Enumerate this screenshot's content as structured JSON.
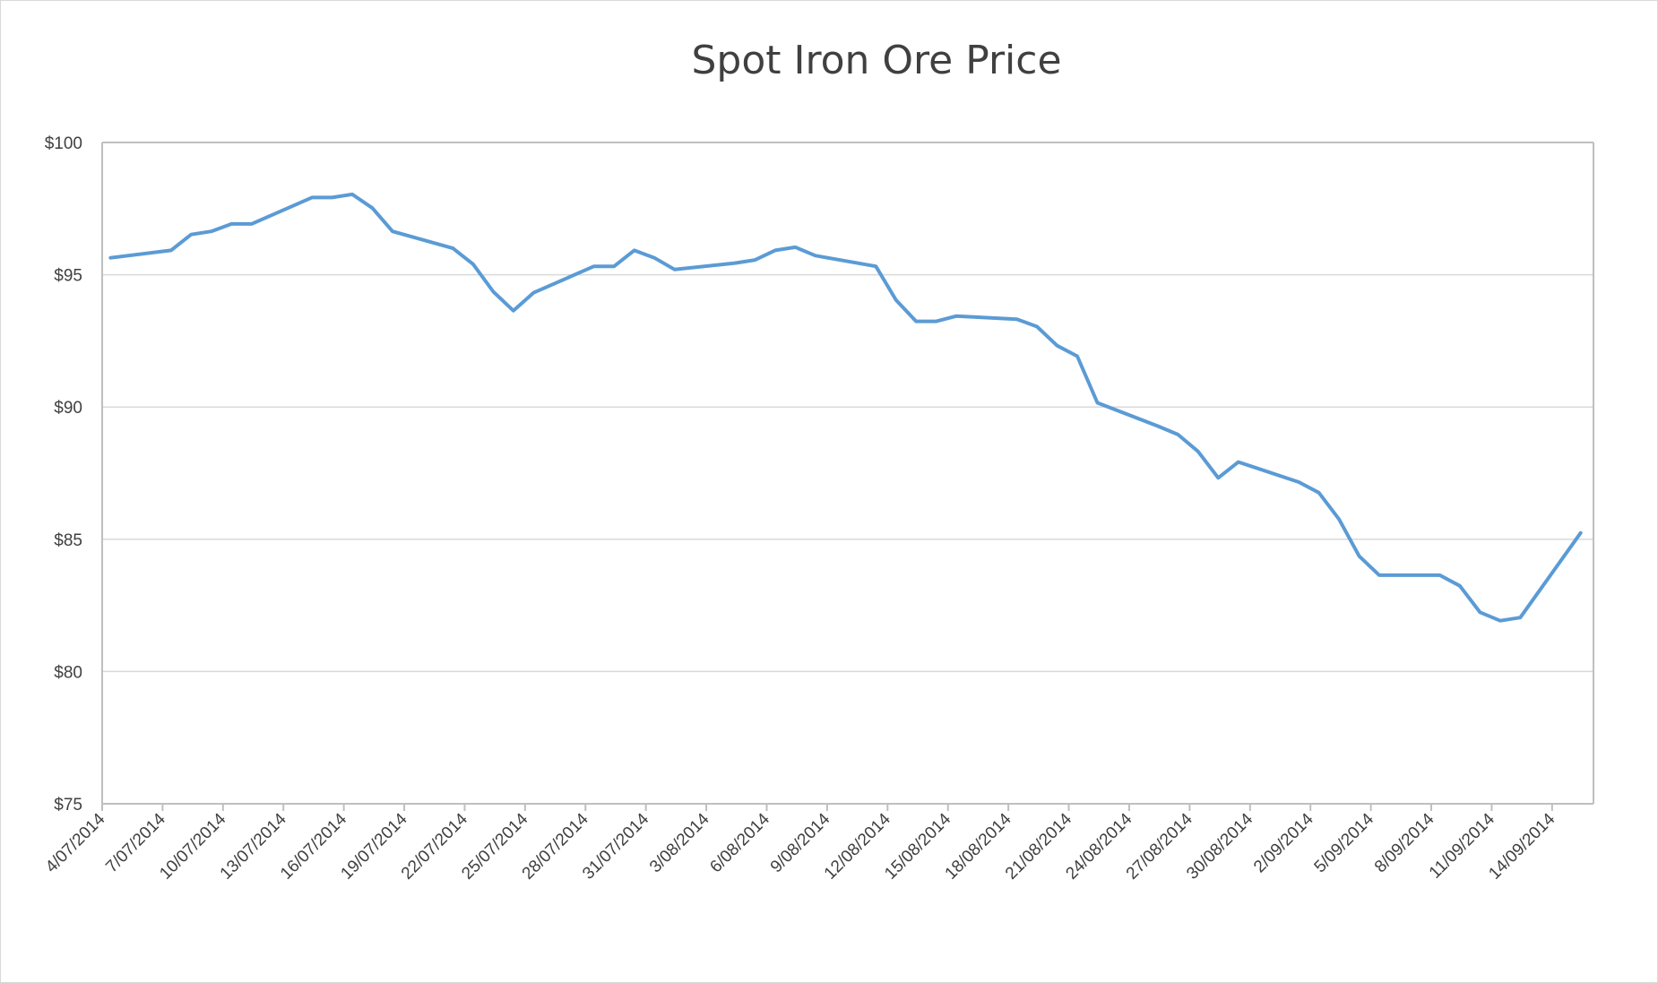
{
  "chart_data": {
    "type": "line",
    "title": "Spot Iron Ore Price",
    "xlabel": "",
    "ylabel": "",
    "ylim": [
      75,
      100
    ],
    "y_ticks": [
      "$75",
      "$80",
      "$85",
      "$90",
      "$95",
      "$100"
    ],
    "y_tick_values": [
      75,
      80,
      85,
      90,
      95,
      100
    ],
    "x_ticks": [
      "4/07/2014",
      "7/07/2014",
      "10/07/2014",
      "13/07/2014",
      "16/07/2014",
      "19/07/2014",
      "22/07/2014",
      "25/07/2014",
      "28/07/2014",
      "31/07/2014",
      "3/08/2014",
      "6/08/2014",
      "9/08/2014",
      "12/08/2014",
      "15/08/2014",
      "18/08/2014",
      "21/08/2014",
      "24/08/2014",
      "27/08/2014",
      "30/08/2014",
      "2/09/2014",
      "5/09/2014",
      "8/09/2014",
      "11/09/2014",
      "14/09/2014"
    ],
    "grid": true,
    "legend": "none",
    "series": [
      {
        "name": "Spot Iron Ore Price",
        "color": "#5b9bd5",
        "x": [
          "4/07/2014",
          "7/07/2014",
          "8/07/2014",
          "9/07/2014",
          "10/07/2014",
          "11/07/2014",
          "14/07/2014",
          "15/07/2014",
          "16/07/2014",
          "17/07/2014",
          "18/07/2014",
          "21/07/2014",
          "22/07/2014",
          "23/07/2014",
          "24/07/2014",
          "25/07/2014",
          "28/07/2014",
          "29/07/2014",
          "30/07/2014",
          "31/07/2014",
          "1/08/2014",
          "4/08/2014",
          "5/08/2014",
          "6/08/2014",
          "7/08/2014",
          "8/08/2014",
          "11/08/2014",
          "12/08/2014",
          "13/08/2014",
          "14/08/2014",
          "15/08/2014",
          "18/08/2014",
          "19/08/2014",
          "20/08/2014",
          "21/08/2014",
          "22/08/2014",
          "25/08/2014",
          "26/08/2014",
          "27/08/2014",
          "28/08/2014",
          "29/08/2014",
          "1/09/2014",
          "2/09/2014",
          "3/09/2014",
          "4/09/2014",
          "5/09/2014",
          "8/09/2014",
          "9/09/2014",
          "10/09/2014",
          "11/09/2014",
          "12/09/2014",
          "15/09/2014"
        ],
        "day_index": [
          0,
          3,
          4,
          5,
          6,
          7,
          10,
          11,
          12,
          13,
          14,
          17,
          18,
          19,
          20,
          21,
          24,
          25,
          26,
          27,
          28,
          31,
          32,
          33,
          34,
          35,
          38,
          39,
          40,
          41,
          42,
          45,
          46,
          47,
          48,
          49,
          52,
          53,
          54,
          55,
          56,
          59,
          60,
          61,
          62,
          63,
          66,
          67,
          68,
          69,
          70,
          73
        ],
        "values": [
          95.64,
          95.92,
          96.52,
          96.64,
          96.92,
          96.92,
          97.92,
          97.92,
          98.04,
          97.52,
          96.64,
          96.0,
          95.4,
          94.36,
          93.64,
          94.32,
          95.32,
          95.32,
          95.92,
          95.64,
          95.2,
          95.44,
          95.56,
          95.92,
          96.04,
          95.72,
          95.32,
          94.04,
          93.24,
          93.24,
          93.44,
          93.32,
          93.04,
          92.32,
          91.92,
          90.16,
          89.28,
          88.96,
          88.32,
          87.32,
          87.92,
          87.16,
          86.76,
          85.76,
          84.36,
          83.64,
          83.64,
          83.24,
          82.24,
          81.92,
          82.04,
          85.24
        ]
      }
    ]
  }
}
